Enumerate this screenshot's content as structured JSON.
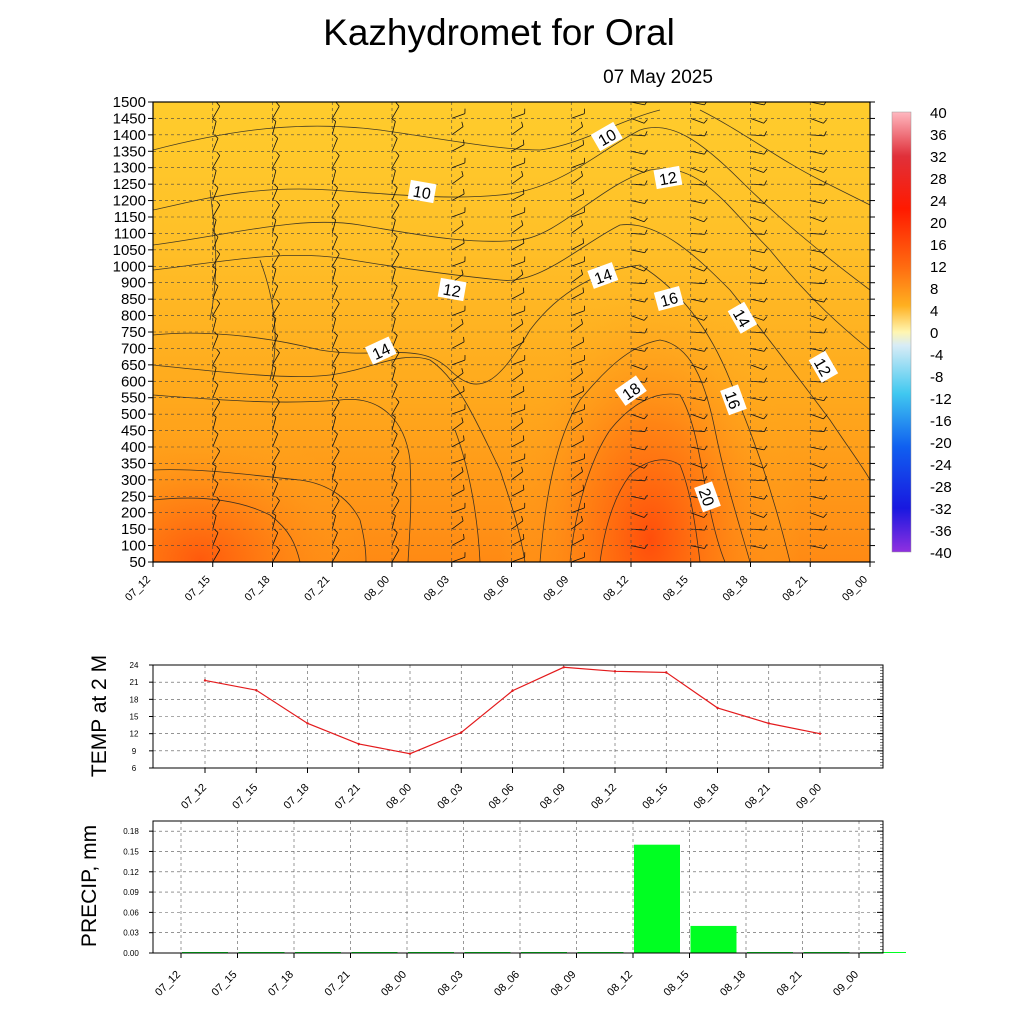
{
  "title": "Kazhydromet  for Oral",
  "date": "07 May 2025",
  "time_labels": [
    "07_12",
    "07_15",
    "07_18",
    "07_21",
    "08_00",
    "08_03",
    "08_06",
    "08_09",
    "08_12",
    "08_15",
    "08_18",
    "08_21",
    "09_00"
  ],
  "colors": {
    "bg_warm": "#ffc829",
    "mid_warm": "#ff9f14",
    "hot": "#ff5a0a",
    "line_temp": "#e31a1c",
    "bar_precip": "#00ff22",
    "contour": "#222222"
  },
  "chart_data": [
    {
      "type": "heatmap",
      "name": "cross-section",
      "x_categories": [
        "07_12",
        "07_15",
        "07_18",
        "07_21",
        "08_00",
        "08_03",
        "08_06",
        "08_09",
        "08_12",
        "08_15",
        "08_18",
        "08_21",
        "09_00"
      ],
      "y_levels": [
        50,
        100,
        150,
        200,
        250,
        300,
        350,
        400,
        450,
        500,
        550,
        600,
        650,
        700,
        750,
        800,
        850,
        900,
        1000,
        1050,
        1100,
        1150,
        1200,
        1250,
        1300,
        1350,
        1400,
        1450,
        1500
      ],
      "ylim": [
        50,
        1500
      ],
      "grid": true,
      "contour_labels": [
        "10",
        "10",
        "12",
        "12",
        "14",
        "14",
        "16",
        "14",
        "12",
        "18",
        "16",
        "20"
      ],
      "colorbar": {
        "ticks": [
          "40",
          "36",
          "32",
          "28",
          "24",
          "20",
          "16",
          "12",
          "8",
          "4",
          "0",
          "-4",
          "-8",
          "-12",
          "-16",
          "-20",
          "-24",
          "-28",
          "-32",
          "-36",
          "-40"
        ],
        "range": [
          -40,
          40
        ]
      }
    },
    {
      "type": "line",
      "name": "temperature",
      "ylabel": "TEMP at 2 M",
      "categories": [
        "07_12",
        "07_15",
        "07_18",
        "07_21",
        "08_00",
        "08_03",
        "08_06",
        "08_09",
        "08_12",
        "08_15",
        "08_18",
        "08_21",
        "09_00"
      ],
      "values": [
        21.3,
        19.6,
        13.8,
        10.2,
        8.5,
        12.2,
        19.5,
        23.6,
        22.9,
        22.7,
        16.5,
        13.8,
        12.0
      ],
      "yticks": [
        "24",
        "21",
        "18",
        "15",
        "12",
        "9",
        "6"
      ],
      "ylim": [
        6,
        24
      ],
      "grid": true
    },
    {
      "type": "bar",
      "name": "precipitation",
      "ylabel": "PRECIP, mm",
      "categories": [
        "07_12",
        "07_15",
        "07_18",
        "07_21",
        "08_00",
        "08_03",
        "08_06",
        "08_09",
        "08_12",
        "08_15",
        "08_18",
        "08_21",
        "09_00"
      ],
      "values": [
        0,
        0,
        0,
        0,
        0,
        0,
        0,
        0,
        0.16,
        0.04,
        0,
        0,
        0
      ],
      "yticks": [
        "0.18",
        "0.15",
        "0.12",
        "0.09",
        "0.06",
        "0.03",
        "0.00"
      ],
      "ylim": [
        0,
        0.195
      ],
      "grid": true
    }
  ]
}
